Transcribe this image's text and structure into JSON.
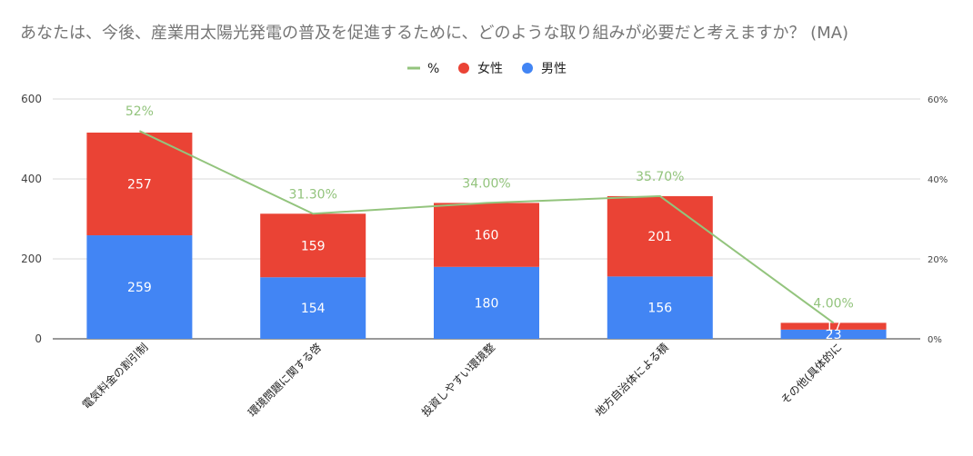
{
  "chart_data": {
    "type": "bar",
    "stacked": true,
    "title": "あなたは、今後、産業用太陽光発電の普及を促進するために、どのような取り組みが必要だと考えますか？ (MA)",
    "categories": [
      "電気料金の割引制",
      "環境問題に関する啓",
      "投資しやすい環境整",
      "地方自治体による積",
      "その他(具体的に"
    ],
    "series": [
      {
        "name": "男性",
        "type": "bar",
        "axis": "left",
        "color": "#4285f4",
        "values": [
          259,
          154,
          180,
          156,
          23
        ]
      },
      {
        "name": "女性",
        "type": "bar",
        "axis": "left",
        "color": "#ea4335",
        "values": [
          257,
          159,
          160,
          201,
          17
        ]
      },
      {
        "name": "%",
        "type": "line",
        "axis": "right",
        "color": "#93c47d",
        "values": [
          52,
          31.3,
          34.0,
          35.7,
          4.0
        ],
        "labels": [
          "52%",
          "31.30%",
          "34.00%",
          "35.70%",
          "4.00%"
        ]
      }
    ],
    "legend": {
      "position": "top",
      "order": [
        "%",
        "女性",
        "男性"
      ]
    },
    "y_left": {
      "min": 0,
      "max": 600,
      "ticks": [
        "0",
        "200",
        "400",
        "600"
      ]
    },
    "y_right": {
      "min": 0,
      "max": 60,
      "ticks": [
        "0%",
        "20%",
        "40%",
        "60%"
      ]
    },
    "grid": true
  }
}
